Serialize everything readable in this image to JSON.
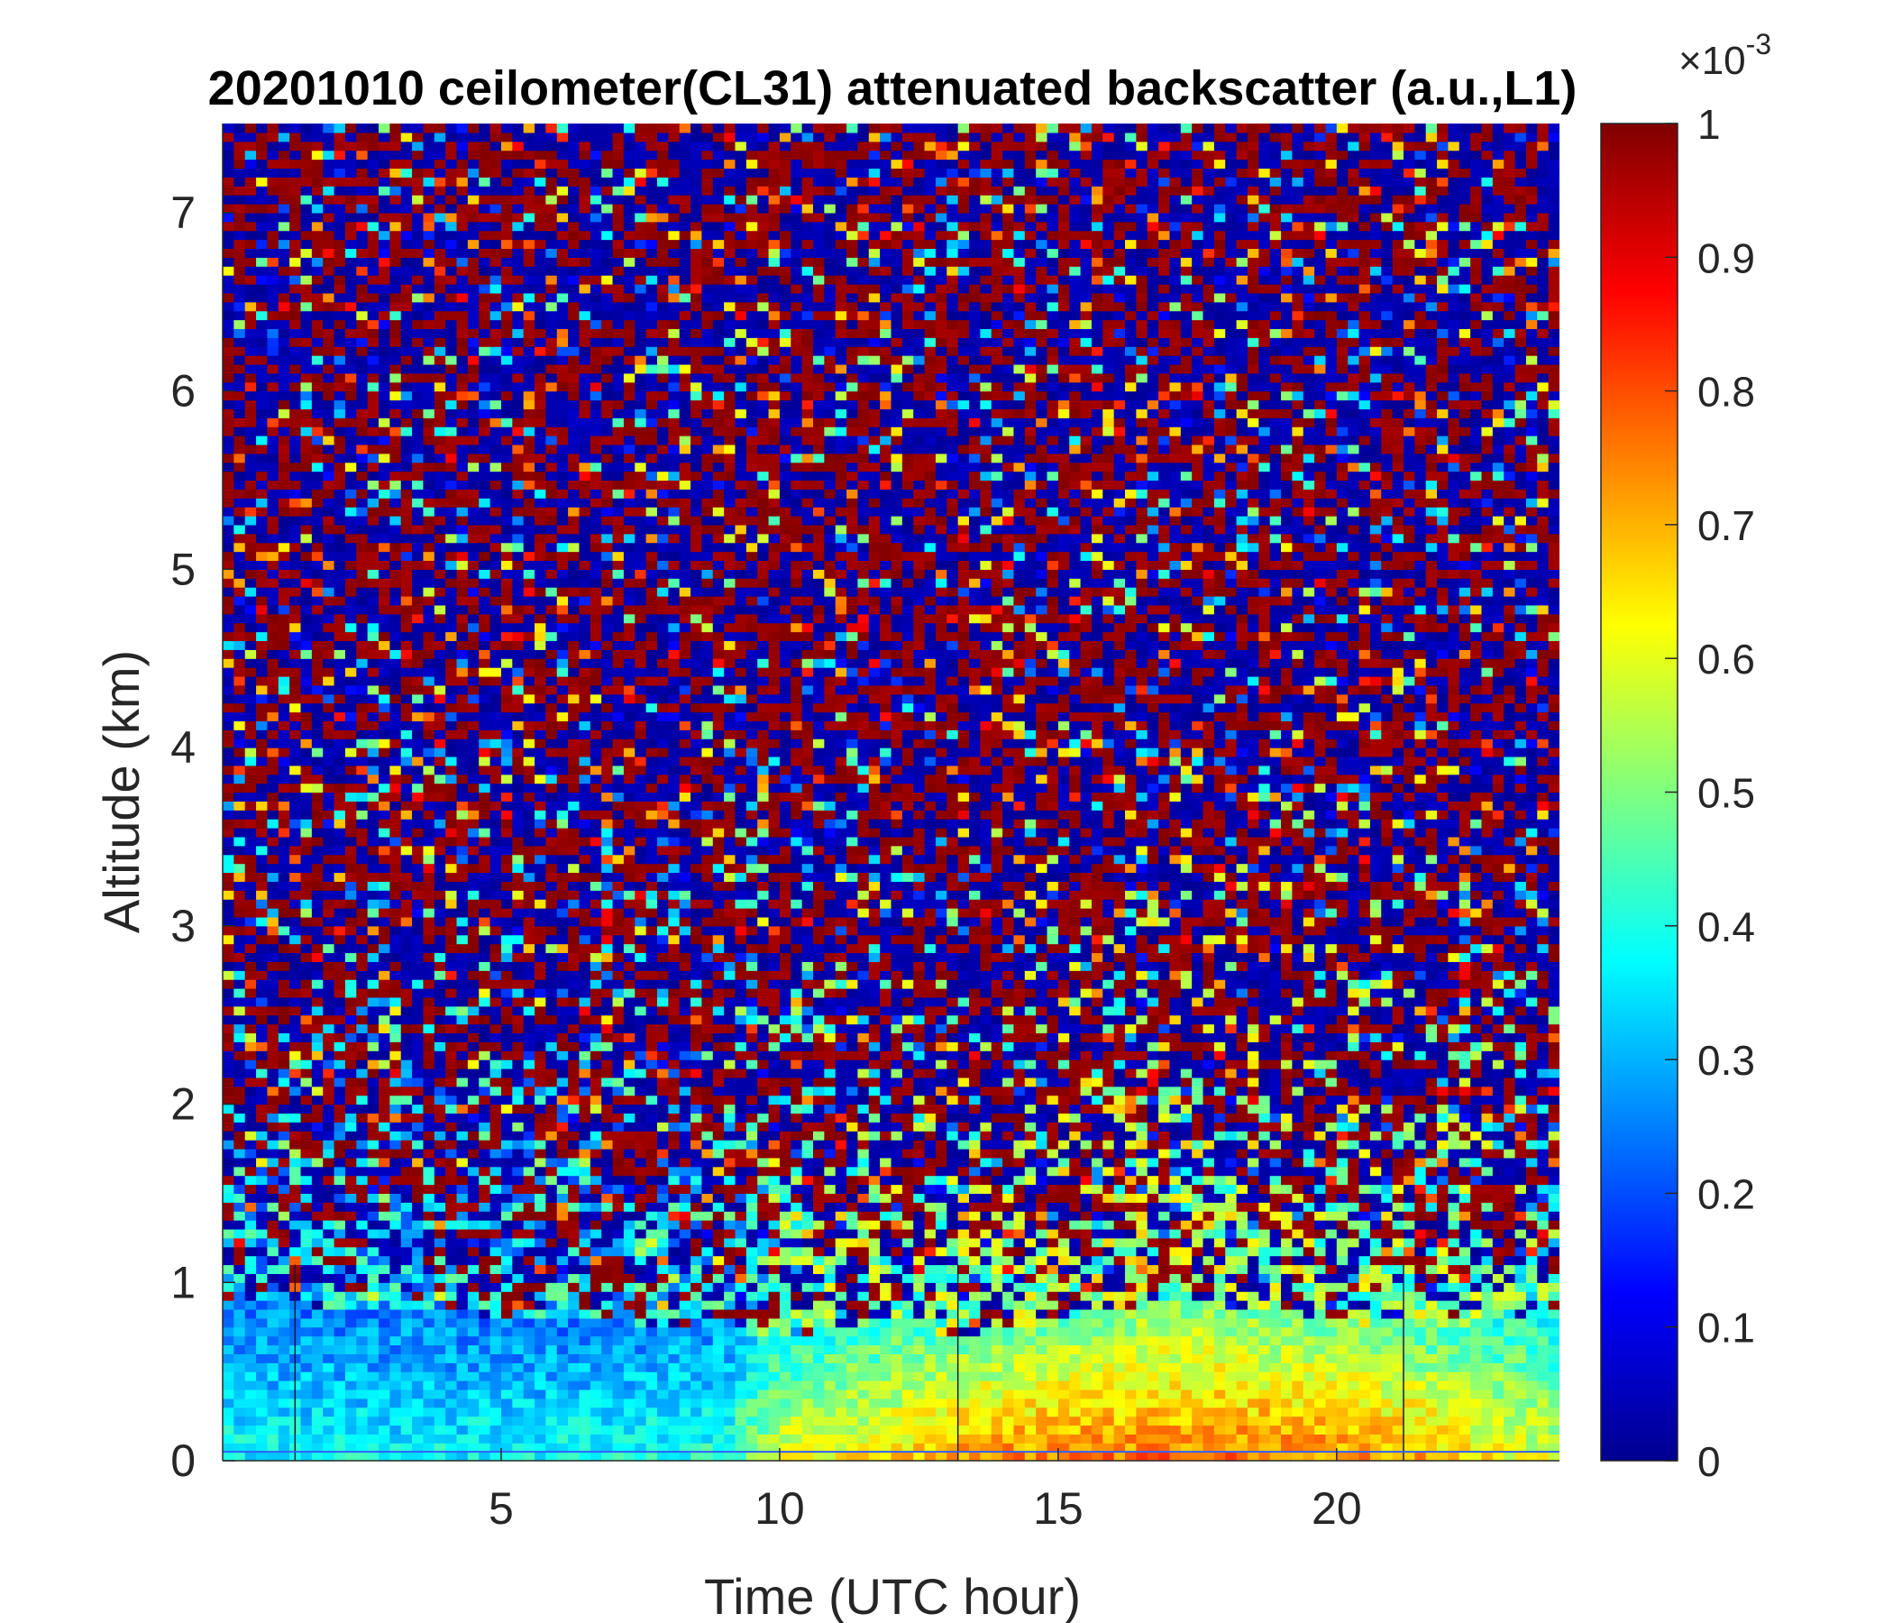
{
  "chart_data": {
    "type": "heatmap",
    "title": "20201010 ceilometer(CL31) attenuated backscatter (a.u.,L1)",
    "xlabel": "Time (UTC hour)",
    "ylabel": "Altitude (km)",
    "xlim": [
      0,
      24
    ],
    "ylim": [
      0,
      7.5
    ],
    "x_ticks": [
      5,
      10,
      15,
      20
    ],
    "y_ticks": [
      0,
      1,
      2,
      3,
      4,
      5,
      6,
      7
    ],
    "colorbar": {
      "clim": [
        0,
        1
      ],
      "exponent_base": "×10",
      "exponent_power": "-3",
      "ticks": [
        0,
        0.1,
        0.2,
        0.3,
        0.4,
        0.5,
        0.6,
        0.7,
        0.8,
        0.9,
        1
      ],
      "tick_labels": [
        "0",
        "0.1",
        "0.2",
        "0.3",
        "0.4",
        "0.5",
        "0.6",
        "0.7",
        "0.8",
        "0.9",
        "1"
      ],
      "colormap": "jet"
    },
    "vertical_lines_x": [
      1.3,
      13.2,
      21.2
    ],
    "horizontal_lines_y": [
      0.05
    ],
    "profile_time": [
      0,
      3,
      6,
      9,
      10,
      12,
      13,
      15,
      17,
      19,
      21,
      22,
      23,
      24
    ],
    "layer_top_km": [
      0.9,
      0.85,
      0.8,
      0.75,
      0.7,
      0.8,
      0.7,
      0.8,
      0.9,
      0.85,
      0.75,
      0.75,
      0.8,
      0.85
    ],
    "near_surface_value": [
      0.38,
      0.38,
      0.38,
      0.42,
      0.6,
      0.65,
      0.72,
      0.75,
      0.77,
      0.75,
      0.73,
      0.68,
      0.62,
      0.58
    ],
    "grid": false
  }
}
